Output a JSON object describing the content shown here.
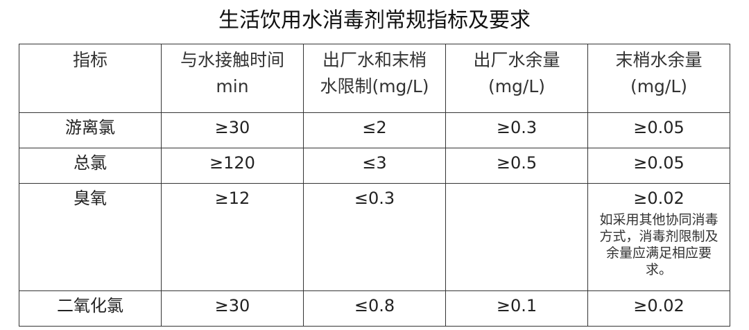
{
  "title": "生活饮用水消毒剂常规指标及要求",
  "table": {
    "headers": [
      {
        "line1": "指标",
        "line2": ""
      },
      {
        "line1": "与水接触时间",
        "line2": "min"
      },
      {
        "line1": "出厂水和末梢",
        "line2": "水限制(mg/L)"
      },
      {
        "line1": "出厂水余量",
        "line2": "(mg/L)"
      },
      {
        "line1": "末梢水余量",
        "line2": "(mg/L)"
      }
    ],
    "rows": [
      {
        "name": "游离氯",
        "contact_time": "≥30",
        "limit": "≤2",
        "plant_residual": "≥0.3",
        "tap_residual": "≥0.05",
        "note": ""
      },
      {
        "name": "总氯",
        "contact_time": "≥120",
        "limit": "≤3",
        "plant_residual": "≥0.5",
        "tap_residual": "≥0.05",
        "note": ""
      },
      {
        "name": "臭氧",
        "contact_time": "≥12",
        "limit": "≤0.3",
        "plant_residual": "",
        "tap_residual": "≥0.02",
        "note": "如采用其他协同消毒方式，消毒剂限制及余量应满足相应要求。"
      },
      {
        "name": "二氧化氯",
        "contact_time": "≥30",
        "limit": "≤0.8",
        "plant_residual": "≥0.1",
        "tap_residual": "≥0.02",
        "note": ""
      }
    ]
  }
}
